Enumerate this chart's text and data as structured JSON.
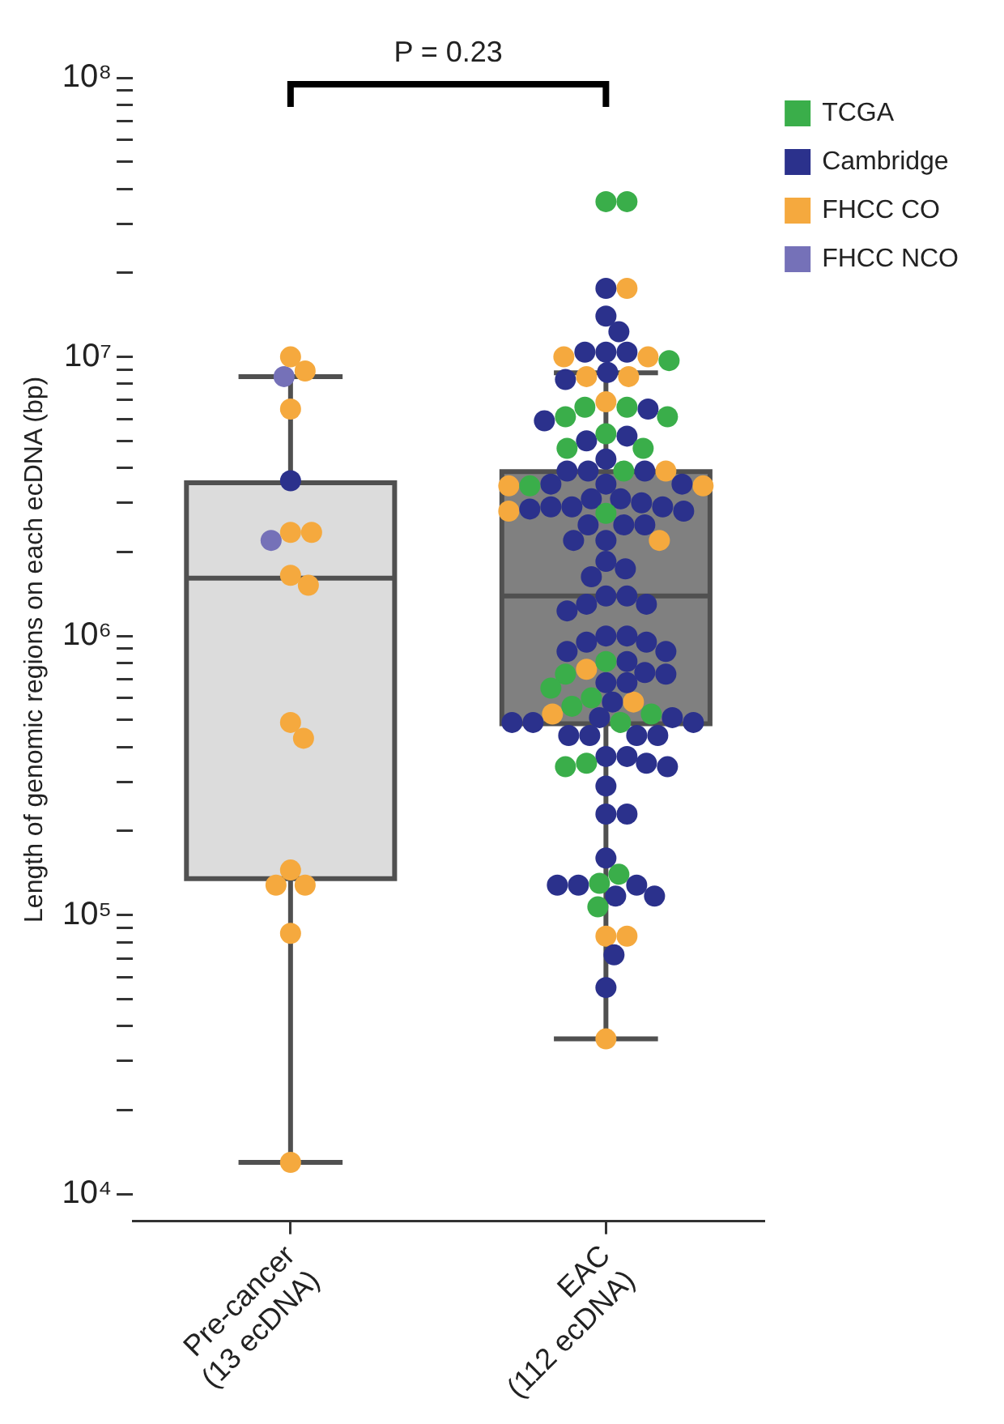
{
  "chart_data": {
    "type": "box",
    "ylabel": "Length of genomic regions on each ecDNA (bp)",
    "categories": [
      "Pre-cancer\n(13 ecDNA)",
      "EAC\n(112 ecDNA)"
    ],
    "boxes": [
      {
        "low": 13000,
        "q1": 135000,
        "median": 1610000,
        "q3": 3540000,
        "high": 8500000
      },
      {
        "low": 36000,
        "q1": 485000,
        "median": 1390000,
        "q3": 3880000,
        "high": 8770000
      }
    ],
    "colors": [
      "#dcdcdc",
      "#808080"
    ],
    "log": true,
    "ylim": [
      8000,
      100000000
    ],
    "yticks": [
      {
        "value": 10000,
        "label": "10⁴"
      },
      {
        "value": 20000,
        "label": null
      },
      {
        "value": 30000,
        "label": null
      },
      {
        "value": 40000,
        "label": null
      },
      {
        "value": 50000,
        "label": null
      },
      {
        "value": 60000,
        "label": null
      },
      {
        "value": 70000,
        "label": null
      },
      {
        "value": 80000,
        "label": null
      },
      {
        "value": 90000,
        "label": null
      },
      {
        "value": 100000,
        "label": "10⁵"
      },
      {
        "value": 200000,
        "label": null
      },
      {
        "value": 300000,
        "label": null
      },
      {
        "value": 400000,
        "label": null
      },
      {
        "value": 500000,
        "label": null
      },
      {
        "value": 600000,
        "label": null
      },
      {
        "value": 700000,
        "label": null
      },
      {
        "value": 800000,
        "label": null
      },
      {
        "value": 900000,
        "label": null
      },
      {
        "value": 1000000,
        "label": "10⁶"
      },
      {
        "value": 2000000,
        "label": null
      },
      {
        "value": 3000000,
        "label": null
      },
      {
        "value": 4000000,
        "label": null
      },
      {
        "value": 5000000,
        "label": null
      },
      {
        "value": 6000000,
        "label": null
      },
      {
        "value": 7000000,
        "label": null
      },
      {
        "value": 8000000,
        "label": null
      },
      {
        "value": 9000000,
        "label": null
      },
      {
        "value": 10000000,
        "label": "10⁷"
      },
      {
        "value": 20000000,
        "label": null
      },
      {
        "value": 30000000,
        "label": null
      },
      {
        "value": 40000000,
        "label": null
      },
      {
        "value": 50000000,
        "label": null
      },
      {
        "value": 60000000,
        "label": null
      },
      {
        "value": 70000000,
        "label": null
      },
      {
        "value": 80000000,
        "label": null
      },
      {
        "value": 90000000,
        "label": null
      },
      {
        "value": 100000000,
        "label": "10⁸"
      }
    ],
    "grid": false,
    "legend": "top right",
    "marker": "circle",
    "annotations": [
      "P = 0.23"
    ],
    "series": [
      {
        "name": "TCGA",
        "type": "scatter",
        "color": "#3aae4a",
        "x": [
          "EAC\n(112 ecDNA)",
          "EAC\n(112 ecDNA)",
          "EAC\n(112 ecDNA)",
          "EAC\n(112 ecDNA)",
          "EAC\n(112 ecDNA)",
          "EAC\n(112 ecDNA)",
          "EAC\n(112 ecDNA)",
          "EAC\n(112 ecDNA)",
          "EAC\n(112 ecDNA)",
          "EAC\n(112 ecDNA)",
          "EAC\n(112 ecDNA)",
          "EAC\n(112 ecDNA)",
          "EAC\n(112 ecDNA)",
          "EAC\n(112 ecDNA)",
          "EAC\n(112 ecDNA)",
          "EAC\n(112 ecDNA)",
          "EAC\n(112 ecDNA)",
          "EAC\n(112 ecDNA)",
          "EAC\n(112 ecDNA)",
          "EAC\n(112 ecDNA)",
          "EAC\n(112 ecDNA)",
          "EAC\n(112 ecDNA)",
          "EAC\n(112 ecDNA)",
          "EAC\n(112 ecDNA)",
          "EAC\n(112 ecDNA)"
        ],
        "values": [
          36000000,
          36000000,
          9700000,
          6600000,
          6600000,
          6100000,
          6100000,
          5300000,
          4700000,
          4700000,
          3900000,
          3450000,
          2750000,
          810000,
          730000,
          650000,
          600000,
          560000,
          525000,
          490000,
          350000,
          340000,
          140000,
          130000,
          107000
        ]
      },
      {
        "name": "Cambridge",
        "type": "scatter",
        "color": "#2b318c",
        "x": [
          "Pre-cancer\n(13 ecDNA)",
          "EAC\n(112 ecDNA)",
          "EAC\n(112 ecDNA)",
          "EAC\n(112 ecDNA)",
          "EAC\n(112 ecDNA)",
          "EAC\n(112 ecDNA)",
          "EAC\n(112 ecDNA)",
          "EAC\n(112 ecDNA)",
          "EAC\n(112 ecDNA)",
          "EAC\n(112 ecDNA)",
          "EAC\n(112 ecDNA)",
          "EAC\n(112 ecDNA)",
          "EAC\n(112 ecDNA)",
          "EAC\n(112 ecDNA)",
          "EAC\n(112 ecDNA)",
          "EAC\n(112 ecDNA)",
          "EAC\n(112 ecDNA)",
          "EAC\n(112 ecDNA)",
          "EAC\n(112 ecDNA)",
          "EAC\n(112 ecDNA)",
          "EAC\n(112 ecDNA)",
          "EAC\n(112 ecDNA)",
          "EAC\n(112 ecDNA)",
          "EAC\n(112 ecDNA)",
          "EAC\n(112 ecDNA)",
          "EAC\n(112 ecDNA)",
          "EAC\n(112 ecDNA)",
          "EAC\n(112 ecDNA)",
          "EAC\n(112 ecDNA)",
          "EAC\n(112 ecDNA)",
          "EAC\n(112 ecDNA)",
          "EAC\n(112 ecDNA)",
          "EAC\n(112 ecDNA)",
          "EAC\n(112 ecDNA)",
          "EAC\n(112 ecDNA)",
          "EAC\n(112 ecDNA)",
          "EAC\n(112 ecDNA)",
          "EAC\n(112 ecDNA)",
          "EAC\n(112 ecDNA)",
          "EAC\n(112 ecDNA)",
          "EAC\n(112 ecDNA)",
          "EAC\n(112 ecDNA)",
          "EAC\n(112 ecDNA)",
          "EAC\n(112 ecDNA)",
          "EAC\n(112 ecDNA)",
          "EAC\n(112 ecDNA)",
          "EAC\n(112 ecDNA)",
          "EAC\n(112 ecDNA)",
          "EAC\n(112 ecDNA)",
          "EAC\n(112 ecDNA)",
          "EAC\n(112 ecDNA)",
          "EAC\n(112 ecDNA)",
          "EAC\n(112 ecDNA)",
          "EAC\n(112 ecDNA)",
          "EAC\n(112 ecDNA)",
          "EAC\n(112 ecDNA)",
          "EAC\n(112 ecDNA)",
          "EAC\n(112 ecDNA)",
          "EAC\n(112 ecDNA)",
          "EAC\n(112 ecDNA)",
          "EAC\n(112 ecDNA)",
          "EAC\n(112 ecDNA)",
          "EAC\n(112 ecDNA)",
          "EAC\n(112 ecDNA)",
          "EAC\n(112 ecDNA)",
          "EAC\n(112 ecDNA)",
          "EAC\n(112 ecDNA)",
          "EAC\n(112 ecDNA)",
          "EAC\n(112 ecDNA)",
          "EAC\n(112 ecDNA)",
          "EAC\n(112 ecDNA)",
          "EAC\n(112 ecDNA)",
          "EAC\n(112 ecDNA)",
          "EAC\n(112 ecDNA)",
          "EAC\n(112 ecDNA)",
          "EAC\n(112 ecDNA)",
          "EAC\n(112 ecDNA)"
        ],
        "values": [
          3600000,
          17600000,
          14000000,
          12300000,
          10400000,
          10400000,
          10400000,
          8800000,
          8300000,
          6500000,
          5900000,
          5200000,
          5000000,
          4300000,
          3900000,
          3900000,
          3900000,
          3500000,
          3500000,
          3500000,
          3100000,
          3000000,
          2900000,
          2850000,
          2800000,
          2900000,
          2900000,
          3100000,
          2500000,
          2500000,
          2500000,
          2200000,
          2200000,
          1850000,
          1740000,
          1630000,
          1390000,
          1390000,
          1300000,
          1300000,
          1230000,
          1000000,
          1000000,
          950000,
          950000,
          880000,
          880000,
          810000,
          740000,
          730000,
          680000,
          680000,
          580000,
          510000,
          510000,
          490000,
          490000,
          490000,
          440000,
          440000,
          440000,
          440000,
          370000,
          370000,
          350000,
          340000,
          290000,
          230000,
          230000,
          160000,
          128000,
          128000,
          128000,
          117000,
          117000,
          72000,
          55000
        ]
      },
      {
        "name": "FHCC CO",
        "type": "scatter",
        "color": "#f5a93e",
        "x": [
          "Pre-cancer\n(13 ecDNA)",
          "Pre-cancer\n(13 ecDNA)",
          "Pre-cancer\n(13 ecDNA)",
          "Pre-cancer\n(13 ecDNA)",
          "Pre-cancer\n(13 ecDNA)",
          "Pre-cancer\n(13 ecDNA)",
          "Pre-cancer\n(13 ecDNA)",
          "Pre-cancer\n(13 ecDNA)",
          "Pre-cancer\n(13 ecDNA)",
          "Pre-cancer\n(13 ecDNA)",
          "Pre-cancer\n(13 ecDNA)",
          "Pre-cancer\n(13 ecDNA)",
          "Pre-cancer\n(13 ecDNA)",
          "Pre-cancer\n(13 ecDNA)",
          "EAC\n(112 ecDNA)",
          "EAC\n(112 ecDNA)",
          "EAC\n(112 ecDNA)",
          "EAC\n(112 ecDNA)",
          "EAC\n(112 ecDNA)",
          "EAC\n(112 ecDNA)",
          "EAC\n(112 ecDNA)",
          "EAC\n(112 ecDNA)",
          "EAC\n(112 ecDNA)",
          "EAC\n(112 ecDNA)",
          "EAC\n(112 ecDNA)",
          "EAC\n(112 ecDNA)",
          "EAC\n(112 ecDNA)",
          "EAC\n(112 ecDNA)",
          "EAC\n(112 ecDNA)",
          "EAC\n(112 ecDNA)",
          "EAC\n(112 ecDNA)"
        ],
        "values": [
          10000000,
          8900000,
          6500000,
          2350000,
          2350000,
          1650000,
          1520000,
          490000,
          430000,
          145000,
          128000,
          128000,
          86000,
          13000,
          17600000,
          10000000,
          10000000,
          8500000,
          8500000,
          6900000,
          3900000,
          3450000,
          3450000,
          2800000,
          2200000,
          760000,
          580000,
          525000,
          84000,
          84000,
          36000
        ]
      },
      {
        "name": "FHCC NCO",
        "type": "scatter",
        "color": "#7571b8",
        "x": [
          "Pre-cancer\n(13 ecDNA)",
          "Pre-cancer\n(13 ecDNA)"
        ],
        "values": [
          8500000,
          2200000
        ]
      }
    ]
  }
}
